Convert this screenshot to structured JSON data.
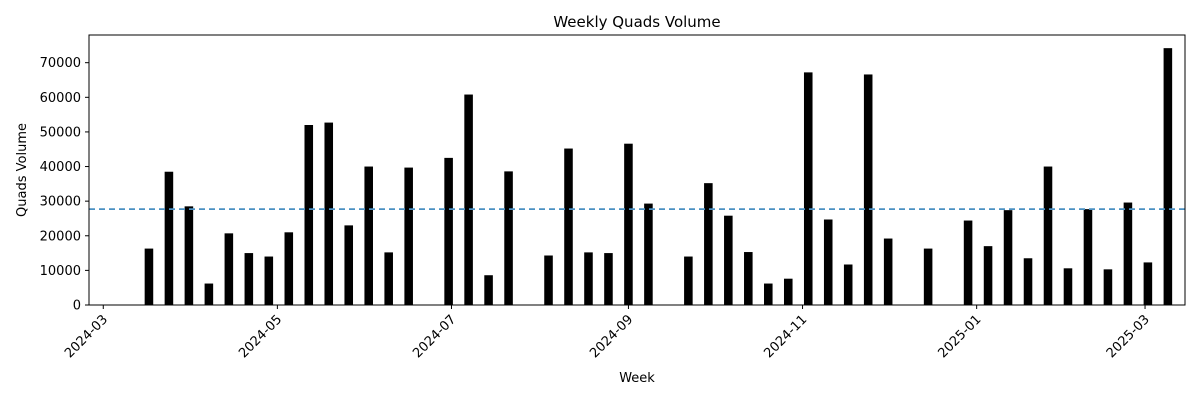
{
  "chart_data": {
    "type": "bar",
    "title": "Weekly Quads Volume",
    "xlabel": "Week",
    "ylabel": "Quads Volume",
    "ylim": [
      0,
      78000
    ],
    "xlim": [
      "2024-02-25",
      "2025-03-15"
    ],
    "y_ticks": [
      0,
      10000,
      20000,
      30000,
      40000,
      50000,
      60000,
      70000
    ],
    "x_ticks": [
      "2024-03-01",
      "2024-05-01",
      "2024-07-01",
      "2024-09-01",
      "2024-11-01",
      "2025-01-01",
      "2025-03-01"
    ],
    "x_tick_labels": [
      "2024-03",
      "2024-05",
      "2024-07",
      "2024-09",
      "2024-11",
      "2025-01",
      "2025-03"
    ],
    "reference_line": {
      "value": 27700,
      "style": "dashed"
    },
    "colors": {
      "bar": "#000000",
      "reference_line": "#4a90c2"
    },
    "grid": false,
    "x": [
      "2024-03-17",
      "2024-03-24",
      "2024-03-31",
      "2024-04-07",
      "2024-04-14",
      "2024-04-21",
      "2024-04-28",
      "2024-05-05",
      "2024-05-12",
      "2024-05-19",
      "2024-05-26",
      "2024-06-02",
      "2024-06-09",
      "2024-06-16",
      "2024-06-30",
      "2024-07-07",
      "2024-07-14",
      "2024-07-21",
      "2024-08-04",
      "2024-08-11",
      "2024-08-18",
      "2024-08-25",
      "2024-09-01",
      "2024-09-08",
      "2024-09-22",
      "2024-09-29",
      "2024-10-06",
      "2024-10-13",
      "2024-10-20",
      "2024-10-27",
      "2024-11-03",
      "2024-11-10",
      "2024-11-17",
      "2024-11-24",
      "2024-12-01",
      "2024-12-15",
      "2024-12-29",
      "2025-01-05",
      "2025-01-12",
      "2025-01-19",
      "2025-01-26",
      "2025-02-02",
      "2025-02-09",
      "2025-02-16",
      "2025-02-23",
      "2025-03-02",
      "2025-03-09"
    ],
    "values": [
      16300,
      38500,
      28500,
      6200,
      20700,
      15000,
      14000,
      21000,
      52000,
      52700,
      23000,
      40000,
      15200,
      39700,
      42500,
      60800,
      8600,
      38600,
      14300,
      45200,
      15200,
      15000,
      46600,
      29300,
      14000,
      35200,
      25800,
      15300,
      6200,
      7600,
      67200,
      24700,
      11700,
      66600,
      19200,
      16300,
      24400,
      17000,
      27400,
      13500,
      40000,
      10600,
      27700,
      10300,
      29600,
      12300,
      74200
    ]
  }
}
